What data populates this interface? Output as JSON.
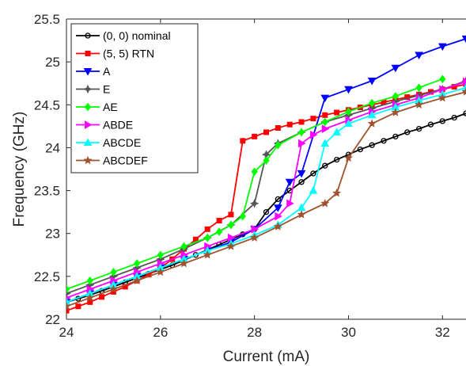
{
  "chart_data": {
    "type": "line",
    "title": "",
    "xlabel": "Current (mA)",
    "ylabel": "Frequency (GHz)",
    "xlim": [
      24,
      32.5
    ],
    "ylim": [
      22,
      25.5
    ],
    "xticks": [
      24,
      26,
      28,
      30,
      32
    ],
    "xtick_labels": [
      "24",
      "26",
      "28",
      "30",
      "32"
    ],
    "yticks": [
      22,
      22.5,
      23,
      23.5,
      24,
      24.5,
      25,
      25.5
    ],
    "ytick_labels": [
      "22",
      "22.5",
      "23",
      "23.5",
      "24",
      "24.5",
      "25",
      "25.5"
    ],
    "grid": false,
    "legend_position": "top-left",
    "series": [
      {
        "name": "(0, 0) nominal",
        "color": "#000000",
        "marker": "circle",
        "x": [
          24,
          24.25,
          24.5,
          24.75,
          25,
          25.25,
          25.5,
          25.75,
          26,
          26.25,
          26.5,
          26.75,
          27,
          27.25,
          27.5,
          27.75,
          28,
          28.25,
          28.5,
          28.75,
          29,
          29.25,
          29.5,
          29.75,
          30,
          30.25,
          30.5,
          30.75,
          31,
          31.25,
          31.5,
          31.75,
          32,
          32.25,
          32.5
        ],
        "y": [
          22.2,
          22.24,
          22.28,
          22.33,
          22.38,
          22.43,
          22.48,
          22.53,
          22.58,
          22.63,
          22.69,
          22.75,
          22.81,
          22.87,
          22.93,
          22.99,
          23.05,
          23.25,
          23.4,
          23.5,
          23.6,
          23.7,
          23.79,
          23.86,
          23.92,
          23.98,
          24.03,
          24.08,
          24.13,
          24.18,
          24.22,
          24.27,
          24.31,
          24.35,
          24.4
        ]
      },
      {
        "name": "(5, 5) RTN",
        "color": "#ff0000",
        "marker": "square",
        "x": [
          24,
          24.25,
          24.5,
          24.75,
          25,
          25.25,
          25.5,
          25.75,
          26,
          26.25,
          26.5,
          26.75,
          27,
          27.25,
          27.5,
          27.75,
          28,
          28.25,
          28.5,
          28.75,
          29,
          29.25,
          29.5,
          29.75,
          30,
          30.25,
          30.5,
          30.75,
          31,
          31.25,
          31.5,
          31.75,
          32,
          32.25,
          32.5
        ],
        "y": [
          22.1,
          22.15,
          22.2,
          22.26,
          22.32,
          22.38,
          22.45,
          22.52,
          22.6,
          22.7,
          22.82,
          22.93,
          23.05,
          23.15,
          23.22,
          24.08,
          24.13,
          24.18,
          24.23,
          24.27,
          24.3,
          24.34,
          24.38,
          24.41,
          24.44,
          24.47,
          24.5,
          24.53,
          24.56,
          24.59,
          24.62,
          24.65,
          24.68,
          24.71,
          24.74
        ]
      },
      {
        "name": "A",
        "color": "#0000ff",
        "marker": "triangle-down",
        "x": [
          24,
          24.5,
          25,
          25.5,
          26,
          26.5,
          27,
          27.5,
          28,
          28.5,
          28.75,
          29,
          29.5,
          30,
          30.5,
          31,
          31.5,
          32,
          32.5
        ],
        "y": [
          22.2,
          22.3,
          22.4,
          22.5,
          22.6,
          22.7,
          22.8,
          22.9,
          23.05,
          23.3,
          23.6,
          23.7,
          24.58,
          24.68,
          24.78,
          24.93,
          25.08,
          25.18,
          25.27
        ]
      },
      {
        "name": "E",
        "color": "#555555",
        "marker": "star",
        "x": [
          24,
          24.5,
          25,
          25.5,
          26,
          26.5,
          27,
          27.5,
          28,
          28.25,
          28.5,
          29,
          29.5,
          30,
          30.5,
          31,
          31.5,
          32,
          32.5
        ],
        "y": [
          22.3,
          22.4,
          22.5,
          22.6,
          22.7,
          22.82,
          22.95,
          23.1,
          23.35,
          23.92,
          24.05,
          24.18,
          24.3,
          24.38,
          24.46,
          24.54,
          24.61,
          24.68,
          24.78
        ]
      },
      {
        "name": "AE",
        "color": "#00ff00",
        "marker": "diamond",
        "x": [
          24,
          24.5,
          25,
          25.5,
          26,
          26.5,
          27,
          27.25,
          27.5,
          27.75,
          28,
          28.25,
          28.5,
          29,
          29.5,
          30,
          30.5,
          31,
          31.5,
          32
        ],
        "y": [
          22.35,
          22.45,
          22.55,
          22.65,
          22.75,
          22.85,
          22.95,
          23.02,
          23.1,
          23.2,
          23.72,
          23.85,
          24.03,
          24.18,
          24.3,
          24.42,
          24.52,
          24.6,
          24.7,
          24.8
        ]
      },
      {
        "name": "ABDE",
        "color": "#ff00ff",
        "marker": "triangle-right",
        "x": [
          24,
          24.5,
          25,
          25.5,
          26,
          26.5,
          27,
          27.5,
          28,
          28.5,
          28.75,
          29,
          29.25,
          29.5,
          30,
          30.5,
          31,
          31.5,
          32,
          32.5
        ],
        "y": [
          22.25,
          22.35,
          22.45,
          22.55,
          22.65,
          22.75,
          22.85,
          22.95,
          23.05,
          23.2,
          23.35,
          24.05,
          24.15,
          24.22,
          24.32,
          24.42,
          24.5,
          24.58,
          24.68,
          24.77
        ]
      },
      {
        "name": "ABCDE",
        "color": "#00ffff",
        "marker": "triangle-up",
        "x": [
          24,
          24.5,
          25,
          25.5,
          26,
          26.5,
          27,
          27.5,
          28,
          28.5,
          29,
          29.25,
          29.5,
          29.75,
          30,
          30.5,
          31,
          31.5,
          32,
          32.5
        ],
        "y": [
          22.2,
          22.3,
          22.4,
          22.5,
          22.6,
          22.7,
          22.8,
          22.88,
          22.98,
          23.1,
          23.3,
          23.5,
          24.05,
          24.18,
          24.28,
          24.38,
          24.47,
          24.55,
          24.62,
          24.7
        ]
      },
      {
        "name": "ABCDEF",
        "color": "#a0522d",
        "marker": "pentagram",
        "x": [
          24,
          24.5,
          25,
          25.5,
          26,
          26.5,
          27,
          27.5,
          28,
          28.5,
          29,
          29.5,
          29.75,
          30,
          30.5,
          31,
          31.5,
          32,
          32.5
        ],
        "y": [
          22.15,
          22.25,
          22.35,
          22.45,
          22.55,
          22.65,
          22.75,
          22.85,
          22.95,
          23.08,
          23.22,
          23.35,
          23.47,
          23.88,
          24.28,
          24.41,
          24.5,
          24.58,
          24.65
        ]
      }
    ]
  }
}
